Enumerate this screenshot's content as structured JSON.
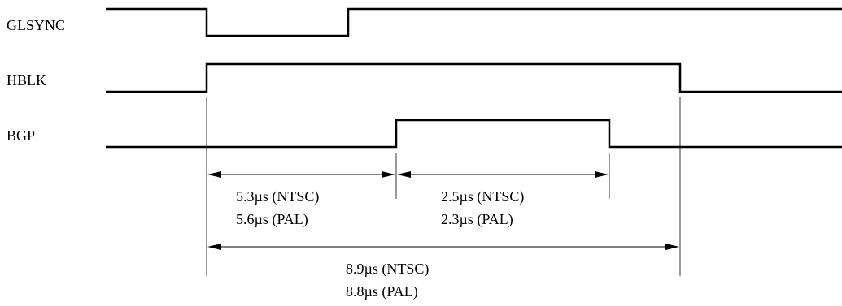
{
  "signals": [
    {
      "label": "GLSYNC"
    },
    {
      "label": "HBLK"
    },
    {
      "label": "BGP"
    }
  ],
  "measurements": [
    {
      "ntsc": "5.3µs (NTSC)",
      "pal": "5.6µs (PAL)"
    },
    {
      "ntsc": "2.5µs (NTSC)",
      "pal": "2.3µs (PAL)"
    },
    {
      "ntsc": "8.9µs (NTSC)",
      "pal": "8.8µs (PAL)"
    }
  ]
}
